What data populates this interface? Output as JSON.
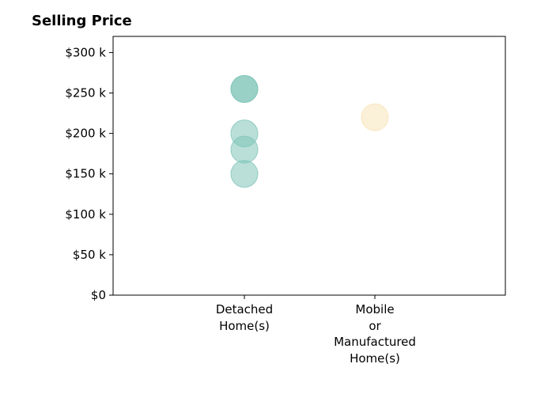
{
  "chart_data": {
    "type": "scatter",
    "title": "Selling Price",
    "xlabel": "",
    "ylabel": "",
    "categories": [
      "Detached\nHome(s)",
      "Mobile\nor\nManufactured\nHome(s)"
    ],
    "ylim": [
      0,
      320000
    ],
    "yticks": [
      {
        "value": 0,
        "label": "$0"
      },
      {
        "value": 50000,
        "label": "$50 k"
      },
      {
        "value": 100000,
        "label": "$100 k"
      },
      {
        "value": 150000,
        "label": "$150 k"
      },
      {
        "value": 200000,
        "label": "$200 k"
      },
      {
        "value": 250000,
        "label": "$250 k"
      },
      {
        "value": 300000,
        "label": "$300 k"
      }
    ],
    "grid": false,
    "points": [
      {
        "category": 0,
        "y": 255000,
        "color": "#7fc4b8"
      },
      {
        "category": 0,
        "y": 255000,
        "color": "#7fc4b8"
      },
      {
        "category": 0,
        "y": 200000,
        "color": "#7fc4b8"
      },
      {
        "category": 0,
        "y": 180000,
        "color": "#7fc4b8"
      },
      {
        "category": 0,
        "y": 150000,
        "color": "#7fc4b8"
      },
      {
        "category": 1,
        "y": 220000,
        "color": "#f7e3b8"
      }
    ]
  }
}
